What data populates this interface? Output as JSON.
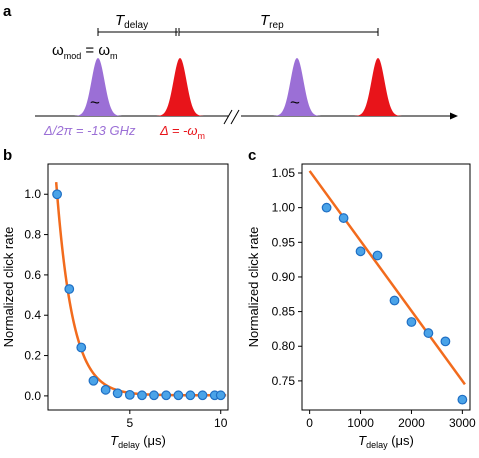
{
  "panel_a": {
    "letter": "a",
    "t_delay_symbol": "T",
    "t_delay_sub": "delay",
    "t_rep_symbol": "T",
    "t_rep_sub": "rep",
    "omega_mod_left": "ω",
    "omega_mod_left_sub": "mod",
    "omega_mod_eq": " = ω",
    "omega_mod_right_sub": "m",
    "tilde": "~",
    "purple_label": "Δ/2π = -13 GHz",
    "red_label_main": "Δ = -ω",
    "red_label_sub": "m",
    "colors": {
      "purple": "#9b6fd6",
      "red": "#e8141a"
    }
  },
  "chart_data": [
    {
      "panel": "b",
      "type": "scatter",
      "xlabel_symbol": "T",
      "xlabel_sub": "delay",
      "xlabel_unit": " (μs)",
      "ylabel": "Normalized click rate",
      "xlim": [
        0.5,
        10.4
      ],
      "ylim": [
        -0.07,
        1.15
      ],
      "xticks": [
        5,
        10
      ],
      "yticks": [
        0.0,
        0.2,
        0.4,
        0.6,
        0.8,
        1.0
      ],
      "yticklabels": [
        "0.0",
        "0.2",
        "0.4",
        "0.6",
        "0.8",
        "1.0"
      ],
      "x": [
        1.0,
        1.67,
        2.33,
        3.0,
        3.67,
        4.33,
        5.0,
        5.67,
        6.33,
        7.0,
        7.67,
        8.33,
        9.0,
        9.67,
        10.0
      ],
      "y": [
        1.0,
        0.53,
        0.24,
        0.075,
        0.03,
        0.013,
        0.005,
        0.003,
        0.003,
        0.003,
        0.003,
        0.003,
        0.003,
        0.003,
        0.003
      ],
      "fit": {
        "model": "exponential",
        "A": 1.0,
        "tau": 0.9,
        "C": 0.003,
        "x0": 1.0
      },
      "grid": false,
      "colors": {
        "marker_fill": "#4aa3e8",
        "marker_edge": "#1f6fc4",
        "fit_line": "#f26b1d"
      }
    },
    {
      "panel": "c",
      "type": "scatter",
      "xlabel_symbol": "T",
      "xlabel_sub": "delay",
      "xlabel_unit": " (μs)",
      "ylabel": "Normalized click rate",
      "xlim": [
        -150,
        3150
      ],
      "ylim": [
        0.708,
        1.063
      ],
      "xticks": [
        0,
        1000,
        2000,
        3000
      ],
      "yticks": [
        0.75,
        0.8,
        0.85,
        0.9,
        0.95,
        1.0,
        1.05
      ],
      "yticklabels": [
        "0.75",
        "0.80",
        "0.85",
        "0.90",
        "0.95",
        "1.00",
        "1.05"
      ],
      "x": [
        333,
        667,
        1000,
        1333,
        1667,
        2000,
        2333,
        2667,
        3000
      ],
      "y": [
        1.0,
        0.985,
        0.937,
        0.931,
        0.866,
        0.835,
        0.819,
        0.807,
        0.723
      ],
      "fit": {
        "model": "linear",
        "x": [
          0,
          3050
        ],
        "y": [
          1.053,
          0.745
        ]
      },
      "grid": false,
      "colors": {
        "marker_fill": "#4aa3e8",
        "marker_edge": "#1f6fc4",
        "fit_line": "#f26b1d"
      }
    }
  ]
}
